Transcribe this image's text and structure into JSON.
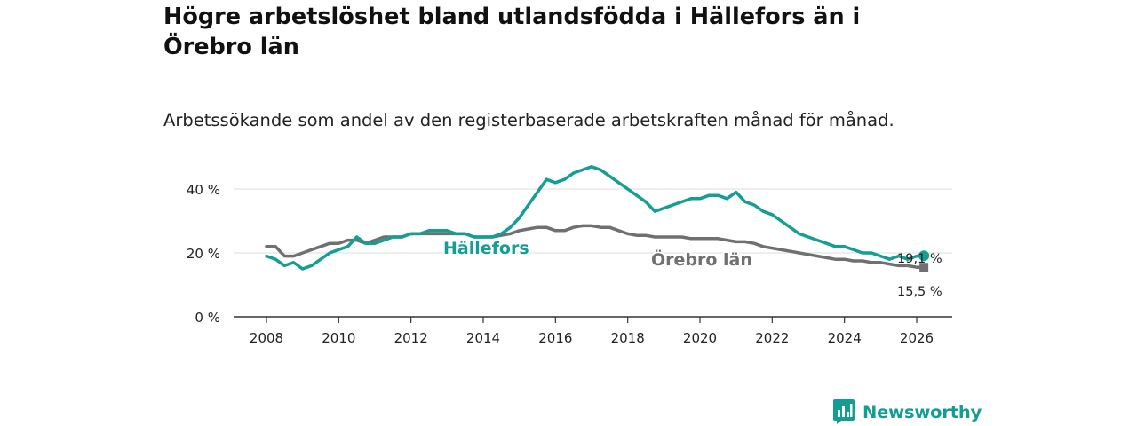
{
  "title": "Högre arbetslöshet bland utlandsfödda i Hällefors än i Örebro län",
  "subtitle": "Arbetssökande som andel av den registerbaserade arbetskraften månad för månad.",
  "brand": {
    "name": "Newsworthy",
    "icon": "bar-chart-icon",
    "color": "#139d94"
  },
  "chart_data": {
    "type": "line",
    "xlim": [
      2008,
      2026.5
    ],
    "ylim": [
      0,
      45
    ],
    "x_ticks": [
      2008,
      2010,
      2012,
      2014,
      2016,
      2018,
      2020,
      2022,
      2024,
      2026
    ],
    "x_tick_labels": [
      "2008",
      "2010",
      "2012",
      "2014",
      "2016",
      "2018",
      "2020",
      "2022",
      "2024",
      "2026"
    ],
    "y_ticks": [
      0,
      20,
      40
    ],
    "y_tick_labels": [
      "0 %",
      "20 %",
      "40 %"
    ],
    "grid": true,
    "series": [
      {
        "name": "Hällefors",
        "color": "#149e95",
        "end_label": "19,1 %",
        "x": [
          2008.0,
          2008.25,
          2008.5,
          2008.75,
          2009.0,
          2009.25,
          2009.5,
          2009.75,
          2010.0,
          2010.25,
          2010.5,
          2010.75,
          2011.0,
          2011.25,
          2011.5,
          2011.75,
          2012.0,
          2012.25,
          2012.5,
          2012.75,
          2013.0,
          2013.25,
          2013.5,
          2013.75,
          2014.0,
          2014.25,
          2014.5,
          2014.75,
          2015.0,
          2015.25,
          2015.5,
          2015.75,
          2016.0,
          2016.25,
          2016.5,
          2016.75,
          2017.0,
          2017.25,
          2017.5,
          2017.75,
          2018.0,
          2018.25,
          2018.5,
          2018.75,
          2019.0,
          2019.25,
          2019.5,
          2019.75,
          2020.0,
          2020.25,
          2020.5,
          2020.75,
          2021.0,
          2021.25,
          2021.5,
          2021.75,
          2022.0,
          2022.25,
          2022.5,
          2022.75,
          2023.0,
          2023.25,
          2023.5,
          2023.75,
          2024.0,
          2024.25,
          2024.5,
          2024.75,
          2025.0,
          2025.25,
          2025.5,
          2025.75,
          2026.0,
          2026.2
        ],
        "values": [
          19,
          18,
          16,
          17,
          15,
          16,
          18,
          20,
          21,
          22,
          25,
          23,
          23,
          24,
          25,
          25,
          26,
          26,
          27,
          27,
          27,
          26,
          26,
          25,
          25,
          25,
          26,
          28,
          31,
          35,
          39,
          43,
          42,
          43,
          45,
          46,
          47,
          46,
          44,
          42,
          40,
          38,
          36,
          33,
          34,
          35,
          36,
          37,
          37,
          38,
          38,
          37,
          39,
          36,
          35,
          33,
          32,
          30,
          28,
          26,
          25,
          24,
          23,
          22,
          22,
          21,
          20,
          20,
          19,
          18,
          19,
          18,
          19,
          19.1
        ]
      },
      {
        "name": "Örebro län",
        "color": "#707070",
        "end_label": "15,5 %",
        "x": [
          2008.0,
          2008.25,
          2008.5,
          2008.75,
          2009.0,
          2009.25,
          2009.5,
          2009.75,
          2010.0,
          2010.25,
          2010.5,
          2010.75,
          2011.0,
          2011.25,
          2011.5,
          2011.75,
          2012.0,
          2012.25,
          2012.5,
          2012.75,
          2013.0,
          2013.25,
          2013.5,
          2013.75,
          2014.0,
          2014.25,
          2014.5,
          2014.75,
          2015.0,
          2015.25,
          2015.5,
          2015.75,
          2016.0,
          2016.25,
          2016.5,
          2016.75,
          2017.0,
          2017.25,
          2017.5,
          2017.75,
          2018.0,
          2018.25,
          2018.5,
          2018.75,
          2019.0,
          2019.25,
          2019.5,
          2019.75,
          2020.0,
          2020.25,
          2020.5,
          2020.75,
          2021.0,
          2021.25,
          2021.5,
          2021.75,
          2022.0,
          2022.25,
          2022.5,
          2022.75,
          2023.0,
          2023.25,
          2023.5,
          2023.75,
          2024.0,
          2024.25,
          2024.5,
          2024.75,
          2025.0,
          2025.25,
          2025.5,
          2025.75,
          2026.0,
          2026.2
        ],
        "values": [
          22,
          22,
          19,
          19,
          20,
          21,
          22,
          23,
          23,
          24,
          24,
          23,
          24,
          25,
          25,
          25,
          26,
          26,
          26,
          26,
          26,
          26,
          26,
          25,
          25,
          25,
          25.5,
          26,
          27,
          27.5,
          28,
          28,
          27,
          27,
          28,
          28.5,
          28.5,
          28,
          28,
          27,
          26,
          25.5,
          25.5,
          25,
          25,
          25,
          25,
          24.5,
          24.5,
          24.5,
          24.5,
          24,
          23.5,
          23.5,
          23,
          22,
          21.5,
          21,
          20.5,
          20,
          19.5,
          19,
          18.5,
          18,
          18,
          17.5,
          17.5,
          17,
          17,
          16.5,
          16,
          16,
          15.5,
          15.5
        ]
      }
    ]
  }
}
